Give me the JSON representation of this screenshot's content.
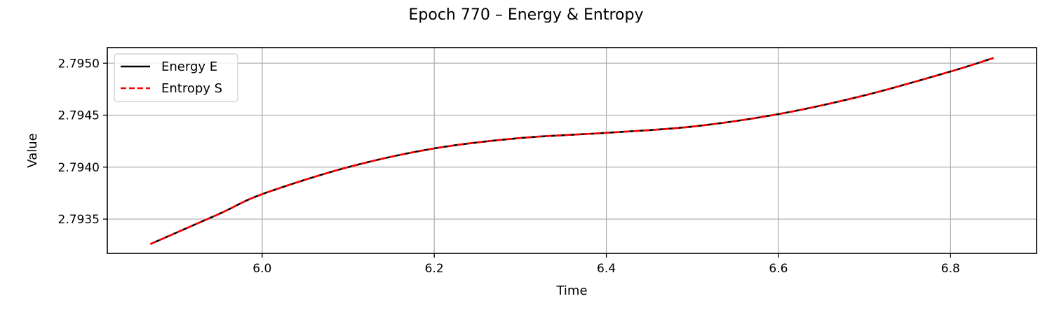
{
  "chart_data": {
    "type": "line",
    "title": "Epoch 770 – Energy & Entropy",
    "xlabel": "Time",
    "ylabel": "Value",
    "xlim": [
      5.82,
      6.9
    ],
    "ylim": [
      2.79317,
      2.79515
    ],
    "xticks": [
      6.0,
      6.2,
      6.4,
      6.6,
      6.8
    ],
    "xtick_labels": [
      "6.0",
      "6.2",
      "6.4",
      "6.6",
      "6.8"
    ],
    "yticks": [
      2.7935,
      2.794,
      2.7945,
      2.795
    ],
    "ytick_labels": [
      "2.7935",
      "2.7940",
      "2.7945",
      "2.7950"
    ],
    "grid": true,
    "legend_position": "top-left",
    "series": [
      {
        "name": "Energy E",
        "color": "#000000",
        "style": "solid",
        "x": [
          5.87,
          5.95,
          6.0,
          6.1,
          6.2,
          6.3,
          6.4,
          6.5,
          6.6,
          6.7,
          6.8,
          6.85
        ],
        "y": [
          2.79326,
          2.79355,
          2.79374,
          2.794,
          2.79418,
          2.79428,
          2.79433,
          2.79439,
          2.79451,
          2.79469,
          2.79492,
          2.79505
        ]
      },
      {
        "name": "Entropy S",
        "color": "#ff0000",
        "style": "dashed",
        "x": [
          5.87,
          5.95,
          6.0,
          6.1,
          6.2,
          6.3,
          6.4,
          6.5,
          6.6,
          6.7,
          6.8,
          6.85
        ],
        "y": [
          2.79326,
          2.79355,
          2.79374,
          2.794,
          2.79418,
          2.79428,
          2.79433,
          2.79439,
          2.79451,
          2.79469,
          2.79492,
          2.79505
        ]
      }
    ]
  }
}
